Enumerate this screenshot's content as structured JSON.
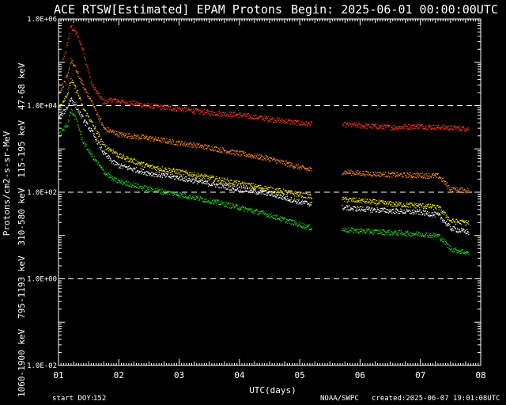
{
  "header": {
    "title": "ACE RTSW[Estimated] EPAM Protons",
    "begin": "Begin: 2025-06-01 00:00:00UTC"
  },
  "footer": {
    "start_doy_label": "start DOY:",
    "start_doy_value": "152",
    "credit": "NOAA/SWPC",
    "created": "created:2025-06-07 19:01:08UTC"
  },
  "colors": {
    "background": "#000000",
    "axes": "#ffffff",
    "red": "#ff3b1f",
    "orange": "#ff8c1a",
    "yellow": "#ffee00",
    "white": "#ffffff",
    "green": "#22dd22"
  },
  "chart_data": {
    "type": "scatter",
    "title": "ACE RTSW[Estimated] EPAM Protons",
    "xlabel": "UTC(days)",
    "ylabel": "Protons/cm2-s-sr-MeV",
    "y_scale": "log",
    "xlim": [
      1.0,
      8.0
    ],
    "ylim": [
      0.01,
      1000000
    ],
    "x_ticks": [
      "01",
      "02",
      "03",
      "04",
      "05",
      "06",
      "07",
      "08"
    ],
    "y_ticks": [
      "1.0E-02",
      "1.0E+00",
      "1.0E+02",
      "1.0E+04",
      "1.0E+06"
    ],
    "reference_lines": [
      1,
      100,
      10000
    ],
    "series": [
      {
        "name": "47-68 keV",
        "color": "#ff3b1f",
        "x": [
          1.0,
          1.15,
          1.2,
          1.3,
          1.4,
          1.55,
          1.75,
          1.9,
          2.0,
          2.5,
          3.0,
          3.5,
          4.0,
          4.5,
          5.0,
          5.2,
          5.7,
          6.0,
          6.5,
          7.0,
          7.5,
          7.8
        ],
        "y": [
          50000,
          300000,
          700000,
          450000,
          200000,
          30000,
          12000,
          14000,
          13000,
          10000,
          8500,
          7000,
          6200,
          5000,
          4000,
          3800,
          3700,
          3500,
          3200,
          3400,
          3100,
          3000
        ]
      },
      {
        "name": "115-195 keV",
        "color": "#ff8c1a",
        "x": [
          1.0,
          1.15,
          1.2,
          1.3,
          1.4,
          1.55,
          1.75,
          1.9,
          2.0,
          2.5,
          3.0,
          3.5,
          4.0,
          4.5,
          5.0,
          5.2,
          5.7,
          6.0,
          6.5,
          7.0,
          7.3,
          7.5,
          7.8
        ],
        "y": [
          20000,
          50000,
          120000,
          60000,
          30000,
          12000,
          3000,
          2500,
          2200,
          1800,
          1400,
          1100,
          800,
          600,
          380,
          330,
          300,
          280,
          260,
          250,
          240,
          120,
          110
        ]
      },
      {
        "name": "310-580 keV",
        "color": "#ffee00",
        "x": [
          1.0,
          1.15,
          1.2,
          1.3,
          1.4,
          1.55,
          1.75,
          1.9,
          2.0,
          2.5,
          3.0,
          3.5,
          4.0,
          4.5,
          5.0,
          5.2,
          5.7,
          6.0,
          6.5,
          7.0,
          7.3,
          7.5,
          7.8
        ],
        "y": [
          9000,
          20000,
          40000,
          22000,
          9000,
          4000,
          1200,
          900,
          700,
          400,
          300,
          220,
          160,
          120,
          90,
          80,
          70,
          65,
          55,
          50,
          45,
          22,
          20
        ]
      },
      {
        "name": "795-1193 keV",
        "color": "#ffffff",
        "x": [
          1.0,
          1.15,
          1.2,
          1.3,
          1.4,
          1.55,
          1.75,
          1.9,
          2.0,
          2.5,
          3.0,
          3.5,
          4.0,
          4.5,
          5.0,
          5.2,
          5.7,
          6.0,
          6.5,
          7.0,
          7.3,
          7.5,
          7.8
        ],
        "y": [
          5000,
          10000,
          15000,
          9000,
          5000,
          2500,
          800,
          500,
          420,
          280,
          220,
          160,
          120,
          95,
          60,
          55,
          45,
          42,
          38,
          35,
          30,
          15,
          12
        ]
      },
      {
        "name": "1060-1900 keV",
        "color": "#22dd22",
        "x": [
          1.0,
          1.15,
          1.2,
          1.3,
          1.4,
          1.55,
          1.75,
          1.9,
          2.0,
          2.5,
          3.0,
          3.5,
          4.0,
          4.5,
          5.0,
          5.2,
          5.7,
          6.0,
          6.5,
          7.0,
          7.3,
          7.5,
          7.8
        ],
        "y": [
          2000,
          4000,
          8000,
          4500,
          1500,
          700,
          300,
          200,
          180,
          120,
          90,
          65,
          45,
          30,
          18,
          15,
          14,
          13,
          12,
          11,
          10,
          5,
          4
        ]
      }
    ]
  }
}
